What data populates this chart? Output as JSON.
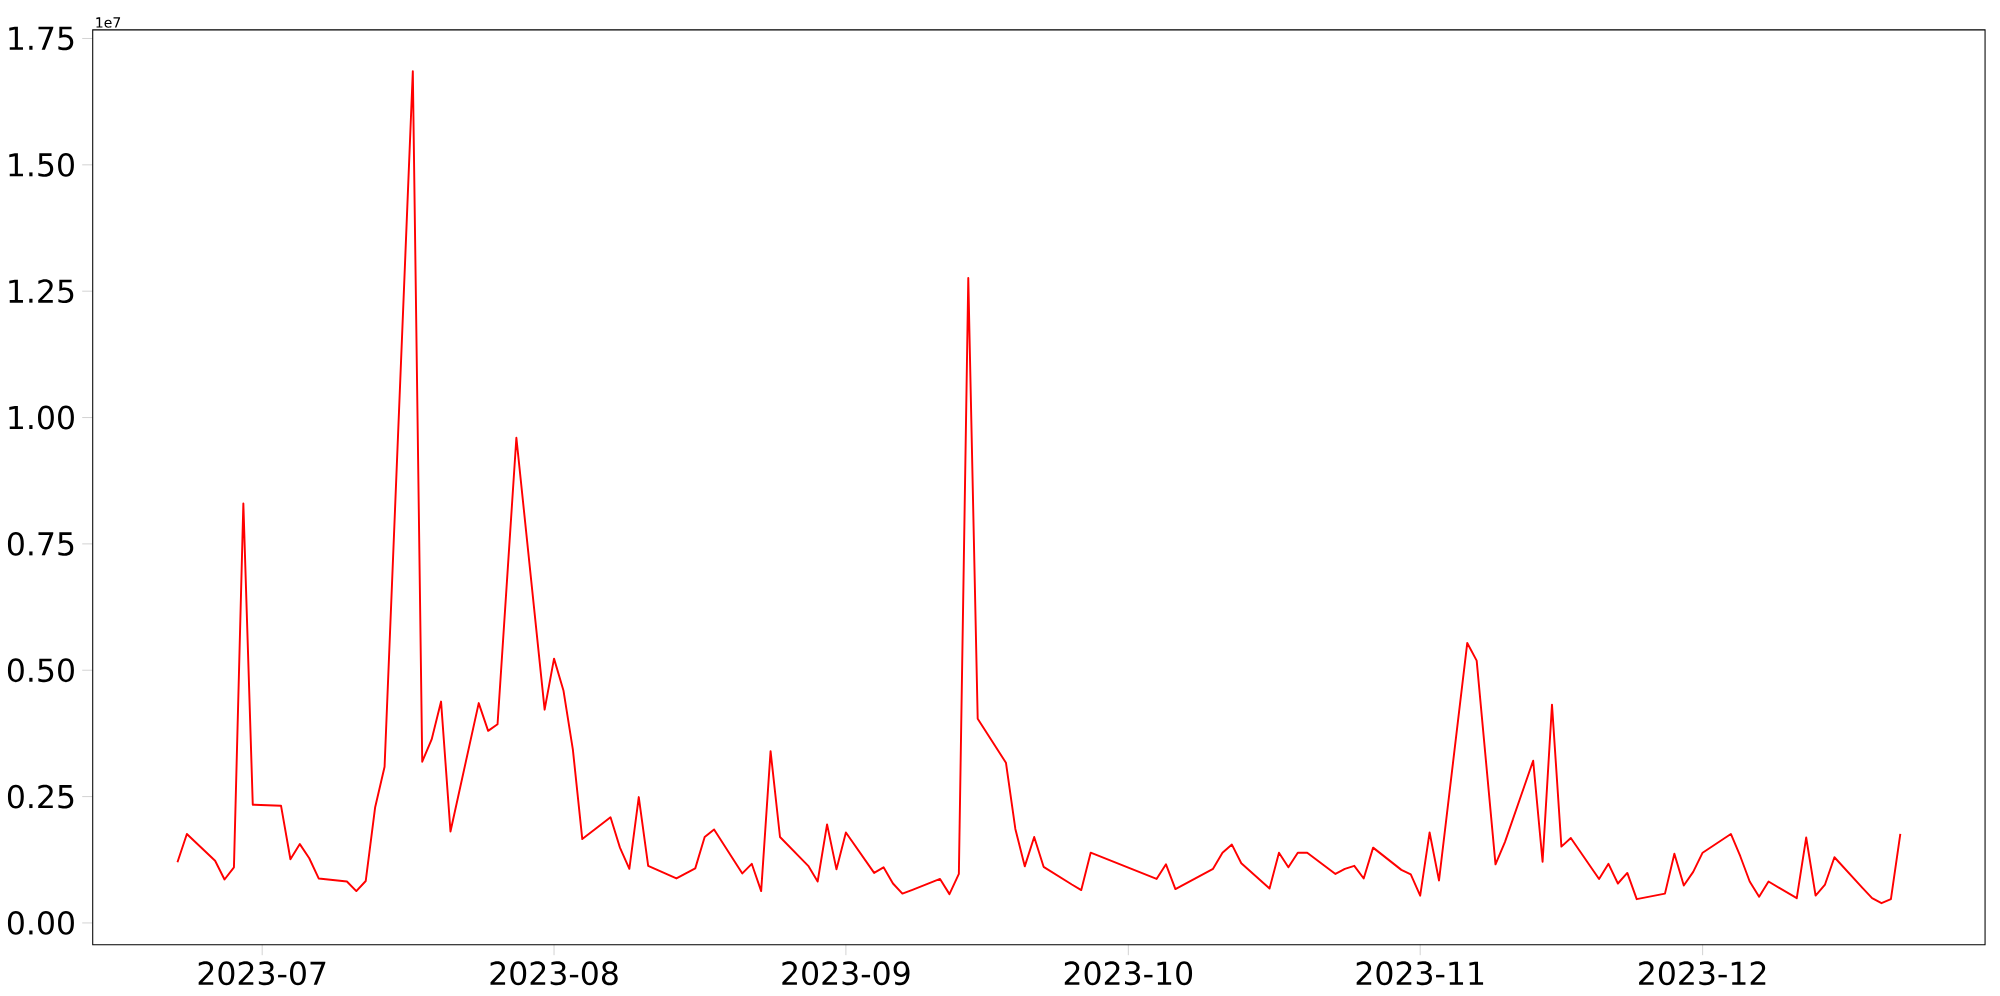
{
  "chart_data": {
    "type": "line",
    "x": [
      "2023-06-22",
      "2023-06-23",
      "2023-06-26",
      "2023-06-27",
      "2023-06-28",
      "2023-06-29",
      "2023-06-30",
      "2023-07-03",
      "2023-07-04",
      "2023-07-05",
      "2023-07-06",
      "2023-07-07",
      "2023-07-10",
      "2023-07-11",
      "2023-07-12",
      "2023-07-13",
      "2023-07-14",
      "2023-07-17",
      "2023-07-18",
      "2023-07-19",
      "2023-07-20",
      "2023-07-21",
      "2023-07-24",
      "2023-07-25",
      "2023-07-26",
      "2023-07-28",
      "2023-07-31",
      "2023-08-01",
      "2023-08-02",
      "2023-08-03",
      "2023-08-04",
      "2023-08-07",
      "2023-08-08",
      "2023-08-09",
      "2023-08-10",
      "2023-08-11",
      "2023-08-14",
      "2023-08-16",
      "2023-08-17",
      "2023-08-18",
      "2023-08-21",
      "2023-08-22",
      "2023-08-23",
      "2023-08-24",
      "2023-08-25",
      "2023-08-28",
      "2023-08-29",
      "2023-08-30",
      "2023-08-31",
      "2023-09-01",
      "2023-09-04",
      "2023-09-05",
      "2023-09-06",
      "2023-09-07",
      "2023-09-08",
      "2023-09-11",
      "2023-09-12",
      "2023-09-13",
      "2023-09-14",
      "2023-09-15",
      "2023-09-18",
      "2023-09-19",
      "2023-09-20",
      "2023-09-21",
      "2023-09-22",
      "2023-09-25",
      "2023-09-26",
      "2023-09-27",
      "2023-10-04",
      "2023-10-05",
      "2023-10-06",
      "2023-10-10",
      "2023-10-11",
      "2023-10-12",
      "2023-10-13",
      "2023-10-16",
      "2023-10-17",
      "2023-10-18",
      "2023-10-19",
      "2023-10-20",
      "2023-10-23",
      "2023-10-24",
      "2023-10-25",
      "2023-10-26",
      "2023-10-27",
      "2023-10-30",
      "2023-10-31",
      "2023-11-01",
      "2023-11-02",
      "2023-11-03",
      "2023-11-06",
      "2023-11-07",
      "2023-11-09",
      "2023-11-10",
      "2023-11-13",
      "2023-11-14",
      "2023-11-15",
      "2023-11-16",
      "2023-11-17",
      "2023-11-20",
      "2023-11-21",
      "2023-11-22",
      "2023-11-23",
      "2023-11-24",
      "2023-11-27",
      "2023-11-28",
      "2023-11-29",
      "2023-11-30",
      "2023-12-01",
      "2023-12-04",
      "2023-12-05",
      "2023-12-06",
      "2023-12-07",
      "2023-12-08",
      "2023-12-11",
      "2023-12-12",
      "2023-12-13",
      "2023-12-14",
      "2023-12-15",
      "2023-12-18",
      "2023-12-19",
      "2023-12-20",
      "2023-12-21",
      "2023-12-22"
    ],
    "series": [
      {
        "color": "#ff0000",
        "values": [
          0.12,
          0.176,
          0.123,
          0.086,
          0.11,
          0.83,
          0.234,
          0.232,
          0.126,
          0.156,
          0.128,
          0.088,
          0.082,
          0.063,
          0.083,
          0.229,
          0.309,
          1.685,
          0.319,
          0.363,
          0.438,
          0.181,
          0.435,
          0.38,
          0.393,
          0.96,
          0.422,
          0.523,
          0.46,
          0.343,
          0.166,
          0.209,
          0.149,
          0.107,
          0.249,
          0.113,
          0.088,
          0.108,
          0.17,
          0.185,
          0.098,
          0.117,
          0.063,
          0.34,
          0.17,
          0.113,
          0.082,
          0.195,
          0.106,
          0.179,
          0.099,
          0.11,
          0.078,
          0.058,
          0.065,
          0.087,
          0.057,
          0.097,
          1.276,
          0.404,
          0.317,
          0.186,
          0.112,
          0.17,
          0.111,
          0.076,
          0.065,
          0.139,
          0.087,
          0.116,
          0.067,
          0.107,
          0.139,
          0.155,
          0.118,
          0.068,
          0.139,
          0.11,
          0.139,
          0.139,
          0.097,
          0.107,
          0.113,
          0.088,
          0.149,
          0.105,
          0.096,
          0.054,
          0.179,
          0.084,
          0.554,
          0.519,
          0.116,
          0.16,
          0.321,
          0.121,
          0.432,
          0.151,
          0.168,
          0.087,
          0.117,
          0.078,
          0.099,
          0.047,
          0.058,
          0.137,
          0.074,
          0.101,
          0.139,
          0.176,
          0.132,
          0.082,
          0.052,
          0.082,
          0.049,
          0.169,
          0.054,
          0.076,
          0.13,
          0.069,
          0.049,
          0.039,
          0.047,
          0.176
        ]
      }
    ],
    "xlim": [
      "2023-06-13",
      "2023-12-31"
    ],
    "ylim": [
      -0.043,
      1.767
    ],
    "xticks": [
      {
        "value": "2023-07-01",
        "label": "2023-07"
      },
      {
        "value": "2023-08-01",
        "label": "2023-08"
      },
      {
        "value": "2023-09-01",
        "label": "2023-09"
      },
      {
        "value": "2023-10-01",
        "label": "2023-10"
      },
      {
        "value": "2023-11-01",
        "label": "2023-11"
      },
      {
        "value": "2023-12-01",
        "label": "2023-12"
      }
    ],
    "yticks": [
      {
        "value": 0,
        "label": "0.00"
      },
      0.25,
      {
        "value": 0.5,
        "label": "0.50"
      },
      0.75,
      {
        "value": 1,
        "label": "1.00"
      },
      1.25,
      {
        "value": 1.5,
        "label": "1.50"
      },
      1.75
    ],
    "annotations": [
      "1e7"
    ]
  }
}
